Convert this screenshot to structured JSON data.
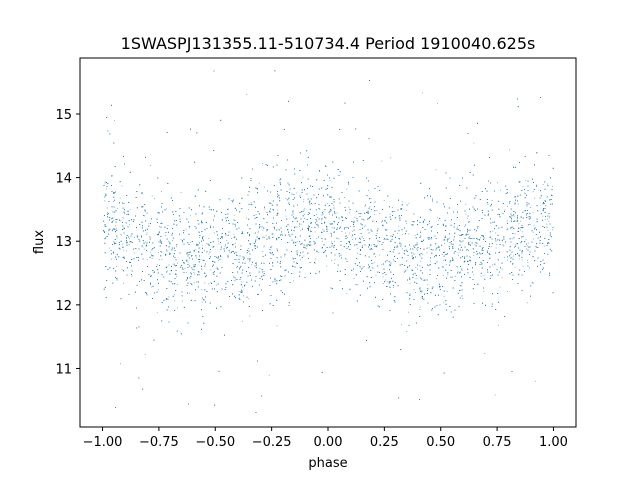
{
  "chart_data": {
    "type": "scatter",
    "title": "1SWASPJ131355.11-510734.4 Period 1910040.625s",
    "xlabel": "phase",
    "ylabel": "flux",
    "xlim": [
      -1.1,
      1.1
    ],
    "ylim": [
      10.08,
      15.88
    ],
    "x_ticks": [
      -1.0,
      -0.75,
      -0.5,
      -0.25,
      0.0,
      0.25,
      0.5,
      0.75,
      1.0
    ],
    "x_tick_labels": [
      "−1.00",
      "−0.75",
      "−0.50",
      "−0.25",
      "0.00",
      "0.25",
      "0.50",
      "0.75",
      "1.00"
    ],
    "y_ticks": [
      11,
      12,
      13,
      14,
      15
    ],
    "y_tick_labels": [
      "11",
      "12",
      "13",
      "14",
      "15"
    ],
    "grid": false,
    "legend": "none",
    "point_color": "#1f77b4",
    "series": [
      {
        "x_range": [
          -1.0,
          1.0
        ],
        "mean_flux_profile": {
          "phase": [
            -1.0,
            -0.9,
            -0.8,
            -0.7,
            -0.6,
            -0.5,
            -0.4,
            -0.3,
            -0.2,
            -0.1,
            0.0,
            0.1,
            0.2,
            0.3,
            0.4,
            0.5,
            0.6,
            0.7,
            0.8,
            0.9,
            1.0
          ],
          "flux": [
            13.2,
            13.1,
            12.95,
            12.8,
            12.75,
            12.8,
            12.9,
            13.0,
            13.15,
            13.3,
            13.35,
            13.2,
            13.0,
            12.8,
            12.75,
            12.8,
            12.9,
            13.0,
            13.1,
            13.25,
            13.3
          ]
        },
        "typical_spread": 0.45,
        "outlier_range": [
          10.3,
          15.7
        ]
      }
    ]
  }
}
